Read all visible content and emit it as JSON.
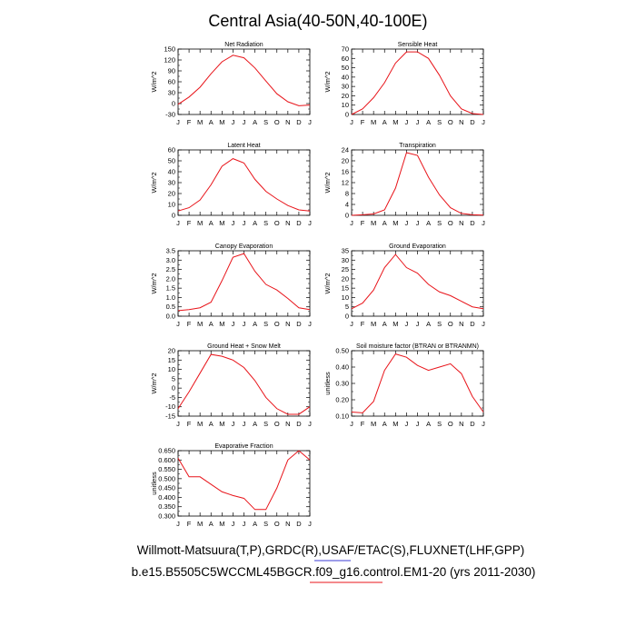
{
  "figure": {
    "title": "Central Asia(40-50N,40-100E)",
    "footer_line1": "Willmott-Matsuura(T,P),GRDC(R),USAF/ETAC(S),FLUXNET(LHF,GPP)",
    "footer_line2": "b.e15.B5505C5WCCML45BGCR.f09_g16.control.EM1-20 (yrs 2011-2030)",
    "line_color": "#e8141a",
    "legend_color_blue": "#3b3bd6",
    "legend_color_red": "#e8141a"
  },
  "chart_data": [
    {
      "type": "line",
      "title": "Net Radiation",
      "ylabel": "W/m^2",
      "categories": [
        "J",
        "F",
        "M",
        "A",
        "M",
        "J",
        "J",
        "A",
        "S",
        "O",
        "N",
        "D",
        "J"
      ],
      "ylim": [
        -30,
        150
      ],
      "yticks": [
        "150",
        "120",
        "90",
        "60",
        "30",
        "0",
        "-30"
      ],
      "values": [
        -2,
        18,
        45,
        82,
        115,
        133,
        126,
        98,
        62,
        27,
        5,
        -6,
        -4
      ]
    },
    {
      "type": "line",
      "title": "Sensible Heat",
      "ylabel": "W/m^2",
      "categories": [
        "J",
        "F",
        "M",
        "A",
        "M",
        "J",
        "J",
        "A",
        "S",
        "O",
        "N",
        "D",
        "J"
      ],
      "ylim": [
        0,
        70
      ],
      "yticks": [
        "70",
        "60",
        "50",
        "40",
        "30",
        "20",
        "10",
        "0"
      ],
      "values": [
        0,
        6,
        18,
        34,
        55,
        67,
        67,
        60,
        42,
        20,
        6,
        1,
        0
      ]
    },
    {
      "type": "line",
      "title": "Latent Heat",
      "ylabel": "W/m^2",
      "categories": [
        "J",
        "F",
        "M",
        "A",
        "M",
        "J",
        "J",
        "A",
        "S",
        "O",
        "N",
        "D",
        "J"
      ],
      "ylim": [
        0,
        60
      ],
      "yticks": [
        "60",
        "50",
        "40",
        "30",
        "20",
        "10",
        "0"
      ],
      "values": [
        4,
        7,
        14,
        28,
        45,
        52,
        48,
        33,
        22,
        15,
        9,
        5,
        4
      ]
    },
    {
      "type": "line",
      "title": "Transpiration",
      "ylabel": "W/m^2",
      "categories": [
        "J",
        "F",
        "M",
        "A",
        "M",
        "J",
        "J",
        "A",
        "S",
        "O",
        "N",
        "D",
        "J"
      ],
      "ylim": [
        0,
        24
      ],
      "yticks": [
        "24",
        "20",
        "16",
        "12",
        "8",
        "4",
        "0"
      ],
      "values": [
        0,
        0.2,
        0.5,
        2,
        10,
        23,
        22,
        14,
        7.5,
        2.8,
        0.7,
        0.2,
        0.1
      ]
    },
    {
      "type": "line",
      "title": "Canopy Evaporation",
      "ylabel": "W/m^2",
      "categories": [
        "J",
        "F",
        "M",
        "A",
        "M",
        "J",
        "J",
        "A",
        "S",
        "O",
        "N",
        "D",
        "J"
      ],
      "ylim": [
        0,
        3.5
      ],
      "yticks": [
        "3.5",
        "3.0",
        "2.5",
        "2.0",
        "1.5",
        "1.0",
        "0.5",
        "0.0"
      ],
      "values": [
        0.3,
        0.35,
        0.45,
        0.75,
        1.9,
        3.15,
        3.35,
        2.4,
        1.7,
        1.4,
        0.95,
        0.45,
        0.35
      ]
    },
    {
      "type": "line",
      "title": "Ground Evaporation",
      "ylabel": "W/m^2",
      "categories": [
        "J",
        "F",
        "M",
        "A",
        "M",
        "J",
        "J",
        "A",
        "S",
        "O",
        "N",
        "D",
        "J"
      ],
      "ylim": [
        0,
        35
      ],
      "yticks": [
        "35",
        "30",
        "25",
        "20",
        "15",
        "10",
        "5",
        "0"
      ],
      "values": [
        4,
        7,
        14,
        26,
        33,
        26,
        23,
        17,
        13,
        11,
        8,
        5,
        4
      ]
    },
    {
      "type": "line",
      "title": "Ground Heat + Snow Melt",
      "ylabel": "W/m^2",
      "categories": [
        "J",
        "F",
        "M",
        "A",
        "M",
        "J",
        "J",
        "A",
        "S",
        "O",
        "N",
        "D",
        "J"
      ],
      "ylim": [
        -15,
        20
      ],
      "yticks": [
        "20",
        "15",
        "10",
        "5",
        "0",
        "-5",
        "-10",
        "-15"
      ],
      "values": [
        -11,
        -2,
        8,
        18,
        17,
        15,
        11,
        4,
        -5,
        -11,
        -14,
        -14,
        -10
      ]
    },
    {
      "type": "line",
      "title": "Soil moisture factor (BTRAN or BTRANMN)",
      "ylabel": "unitless",
      "categories": [
        "J",
        "F",
        "M",
        "A",
        "M",
        "J",
        "J",
        "A",
        "S",
        "O",
        "N",
        "D",
        "J"
      ],
      "ylim": [
        0.1,
        0.5
      ],
      "yticks": [
        "0.50",
        "0.40",
        "0.30",
        "0.20",
        "0.10"
      ],
      "values": [
        0.125,
        0.12,
        0.19,
        0.38,
        0.48,
        0.46,
        0.41,
        0.38,
        0.4,
        0.42,
        0.36,
        0.22,
        0.125
      ]
    },
    {
      "type": "line",
      "title": "Evaporative Fraction",
      "ylabel": "unitless",
      "categories": [
        "J",
        "F",
        "M",
        "A",
        "M",
        "J",
        "J",
        "A",
        "S",
        "O",
        "N",
        "D",
        "J"
      ],
      "ylim": [
        0.3,
        0.65
      ],
      "yticks": [
        "0.650",
        "0.600",
        "0.550",
        "0.500",
        "0.450",
        "0.400",
        "0.350",
        "0.300"
      ],
      "values": [
        0.61,
        0.51,
        0.51,
        0.47,
        0.43,
        0.41,
        0.395,
        0.335,
        0.335,
        0.45,
        0.6,
        0.65,
        0.6
      ]
    }
  ]
}
